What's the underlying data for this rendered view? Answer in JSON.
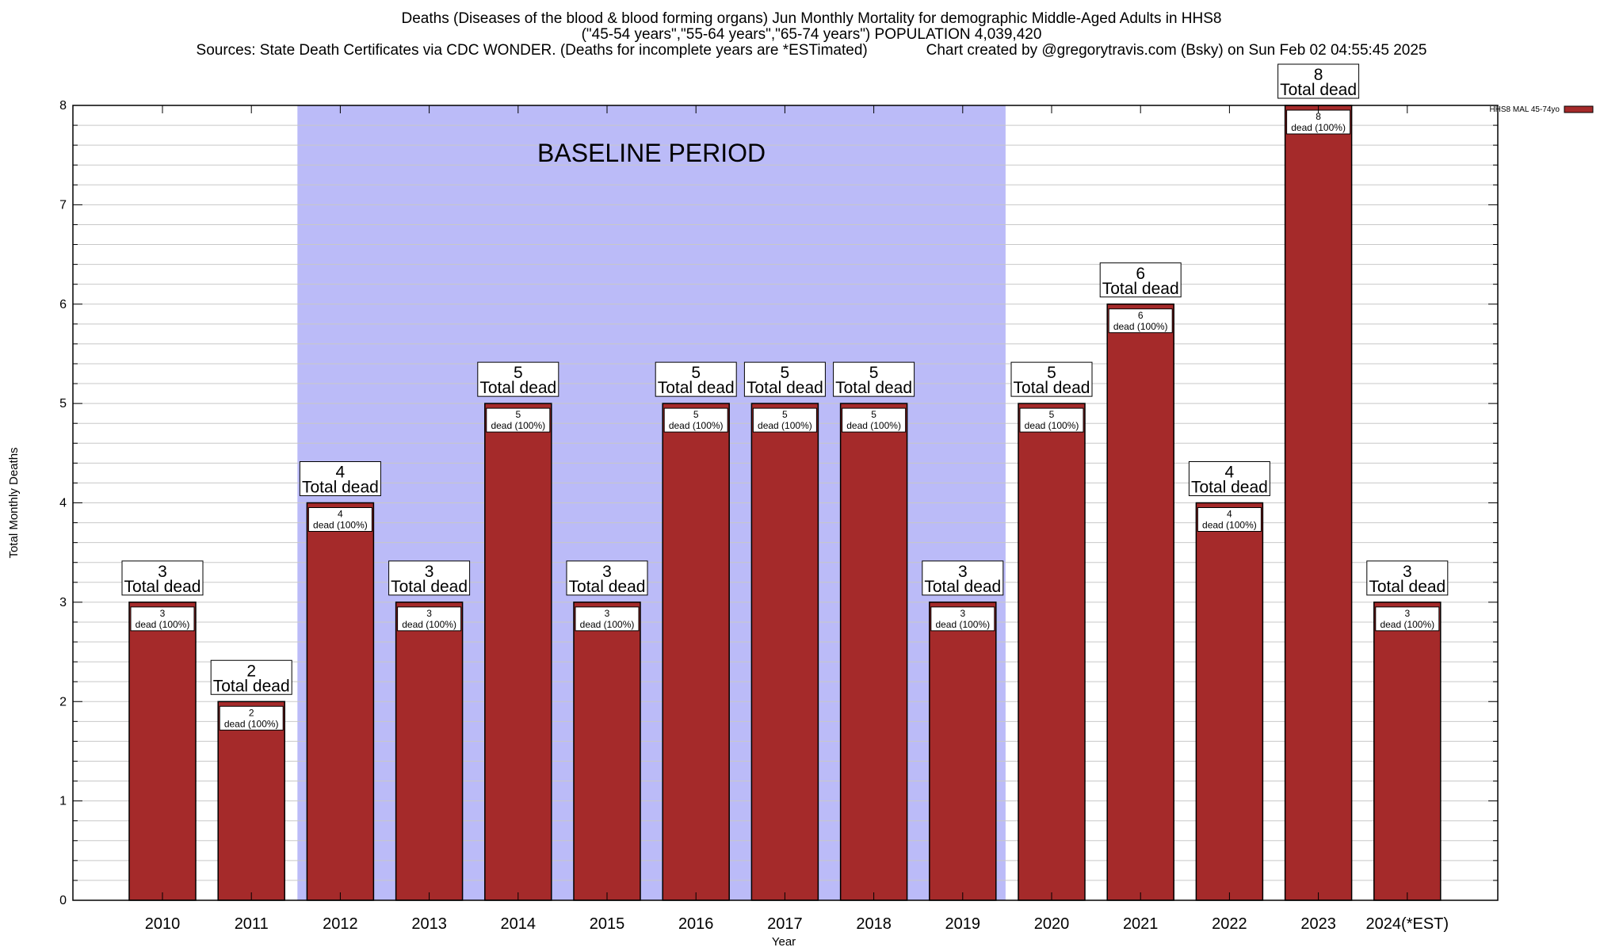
{
  "titles": {
    "line1": "Deaths (Diseases of the blood & blood forming organs) Jun Monthly Mortality for demographic Middle-Aged Adults in HHS8",
    "line2": "(\"45-54 years\",\"55-64 years\",\"65-74 years\") POPULATION 4,039,420",
    "line3": "Sources: State Death Certificates via CDC WONDER. (Deaths for incomplete years are *ESTimated)              Chart created by @gregorytravis.com (Bsky) on Sun Feb 02 04:55:45 2025"
  },
  "colors": {
    "bar": "#a52a2a",
    "baseline_shade": "#bbbbf8",
    "grid": "#c8c8c8",
    "axis": "#000000"
  },
  "chart_data": {
    "type": "bar",
    "title": "Deaths (Diseases of the blood & blood forming organs) Jun Monthly Mortality for demographic Middle-Aged Adults in HHS8",
    "xlabel": "Year",
    "ylabel": "Total Monthly Deaths",
    "ylim": [
      0,
      8
    ],
    "yticks": [
      "0",
      "1",
      "2",
      "3",
      "4",
      "5",
      "6",
      "7",
      "8"
    ],
    "categories": [
      "2010",
      "2011",
      "2012",
      "2013",
      "2014",
      "2015",
      "2016",
      "2017",
      "2018",
      "2019",
      "2020",
      "2021",
      "2022",
      "2023",
      "2024(*EST)"
    ],
    "series": [
      {
        "name": "HHS8 MAL 45-74yo",
        "values": [
          3,
          2,
          4,
          3,
          5,
          3,
          5,
          5,
          5,
          3,
          5,
          6,
          4,
          8,
          3
        ]
      }
    ],
    "total_label": "Total dead",
    "inner_label": "dead (100%)",
    "baseline": {
      "label": "BASELINE PERIOD",
      "from": "2012",
      "to": "2019"
    },
    "legend": {
      "position": "top-right",
      "entries": [
        "HHS8 MAL 45-74yo"
      ]
    },
    "grid": true
  }
}
